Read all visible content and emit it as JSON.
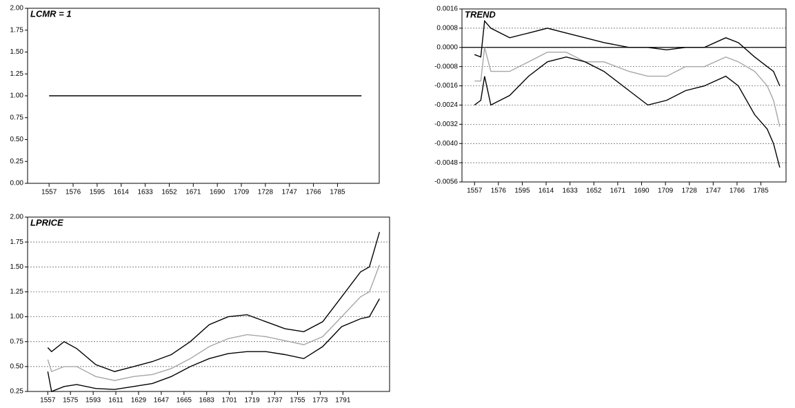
{
  "chart_data": [
    {
      "type": "line",
      "title": "LCMR = 1",
      "x": [
        1557,
        1804
      ],
      "series": [
        {
          "color": "#000000",
          "values": [
            1,
            1
          ]
        }
      ],
      "xlim": [
        1540,
        1818
      ],
      "xticks": [
        1557,
        1576,
        1595,
        1614,
        1633,
        1652,
        1671,
        1690,
        1709,
        1728,
        1747,
        1766,
        1785
      ],
      "ylim": [
        0,
        2
      ],
      "yticks": [
        {
          "value": 0,
          "label": "0.00"
        },
        {
          "value": 0.25,
          "label": "0.25"
        },
        {
          "value": 0.5,
          "label": "0.50"
        },
        {
          "value": 0.75,
          "label": "0.75"
        },
        {
          "value": 1,
          "label": "1.00"
        },
        {
          "value": 1.25,
          "label": "1.25"
        },
        {
          "value": 1.5,
          "label": "1.50"
        },
        {
          "value": 1.75,
          "label": "1.75"
        },
        {
          "value": 2,
          "label": "2.00"
        }
      ],
      "grid": false,
      "zero_line": false
    },
    {
      "type": "line",
      "title": "TREND",
      "x": [
        1557,
        1562,
        1565,
        1570,
        1585,
        1600,
        1615,
        1630,
        1645,
        1660,
        1680,
        1695,
        1710,
        1725,
        1740,
        1757,
        1767,
        1780,
        1790,
        1795,
        1800
      ],
      "series": [
        {
          "color": "#000000",
          "values": [
            -0.0003,
            -0.0004,
            0.0011,
            0.0008,
            0.0004,
            0.0006,
            0.0008,
            0.0006,
            0.0004,
            0.0002,
            0.0,
            0.0,
            -0.0001,
            0.0,
            0.0,
            0.0004,
            0.0002,
            -0.0004,
            -0.0008,
            -0.001,
            -0.0016
          ]
        },
        {
          "color": "#a6a6a6",
          "values": [
            -0.0014,
            -0.0014,
            0.0,
            -0.001,
            -0.001,
            -0.0006,
            -0.0002,
            -0.0002,
            -0.0006,
            -0.0006,
            -0.001,
            -0.0012,
            -0.0012,
            -0.0008,
            -0.0008,
            -0.0004,
            -0.0006,
            -0.001,
            -0.0016,
            -0.0022,
            -0.0033
          ]
        },
        {
          "color": "#000000",
          "values": [
            -0.0024,
            -0.0022,
            -0.0012,
            -0.0024,
            -0.002,
            -0.0012,
            -0.0006,
            -0.0004,
            -0.0006,
            -0.001,
            -0.0018,
            -0.0024,
            -0.0022,
            -0.0018,
            -0.0016,
            -0.0012,
            -0.0016,
            -0.0028,
            -0.0034,
            -0.004,
            -0.005
          ]
        }
      ],
      "xlim": [
        1547,
        1805
      ],
      "xticks": [
        1557,
        1576,
        1595,
        1614,
        1633,
        1652,
        1671,
        1690,
        1709,
        1728,
        1747,
        1766,
        1785
      ],
      "ylim": [
        -0.0056,
        0.0016
      ],
      "yticks": [
        {
          "value": -0.0056,
          "label": "-0.0056"
        },
        {
          "value": -0.0048,
          "label": "-0.0048"
        },
        {
          "value": -0.004,
          "label": "-0.0040"
        },
        {
          "value": -0.0032,
          "label": "-0.0032"
        },
        {
          "value": -0.0024,
          "label": "-0.0024"
        },
        {
          "value": -0.0016,
          "label": "-0.0016"
        },
        {
          "value": -0.0008,
          "label": "-0.0008"
        },
        {
          "value": 0,
          "label": "0.0000"
        },
        {
          "value": 0.0008,
          "label": "0.0008"
        },
        {
          "value": 0.0016,
          "label": "0.0016"
        }
      ],
      "grid": true,
      "zero_line": true
    },
    {
      "type": "line",
      "title": "LPRICE",
      "x": [
        1557,
        1560,
        1570,
        1580,
        1595,
        1610,
        1625,
        1640,
        1655,
        1670,
        1685,
        1700,
        1715,
        1730,
        1745,
        1760,
        1775,
        1790,
        1805,
        1812,
        1820
      ],
      "series": [
        {
          "color": "#000000",
          "values": [
            0.69,
            0.65,
            0.75,
            0.68,
            0.52,
            0.45,
            0.5,
            0.55,
            0.62,
            0.75,
            0.92,
            1.0,
            1.02,
            0.95,
            0.88,
            0.85,
            0.95,
            1.2,
            1.45,
            1.5,
            1.85
          ]
        },
        {
          "color": "#a6a6a6",
          "values": [
            0.57,
            0.45,
            0.5,
            0.5,
            0.4,
            0.36,
            0.4,
            0.42,
            0.48,
            0.58,
            0.7,
            0.78,
            0.82,
            0.8,
            0.76,
            0.72,
            0.8,
            1.0,
            1.2,
            1.25,
            1.52
          ]
        },
        {
          "color": "#000000",
          "values": [
            0.45,
            0.25,
            0.3,
            0.32,
            0.28,
            0.27,
            0.3,
            0.33,
            0.4,
            0.5,
            0.58,
            0.63,
            0.65,
            0.65,
            0.62,
            0.58,
            0.7,
            0.9,
            0.98,
            1.0,
            1.18
          ]
        }
      ],
      "xlim": [
        1541,
        1828
      ],
      "xticks": [
        1557,
        1575,
        1593,
        1611,
        1629,
        1647,
        1665,
        1683,
        1701,
        1719,
        1737,
        1755,
        1773,
        1791
      ],
      "ylim": [
        0.25,
        2
      ],
      "yticks": [
        {
          "value": 0.25,
          "label": "0.25"
        },
        {
          "value": 0.5,
          "label": "0.50"
        },
        {
          "value": 0.75,
          "label": "0.75"
        },
        {
          "value": 1,
          "label": "1.00"
        },
        {
          "value": 1.25,
          "label": "1.25"
        },
        {
          "value": 1.5,
          "label": "1.50"
        },
        {
          "value": 1.75,
          "label": "1.75"
        },
        {
          "value": 2,
          "label": "2.00"
        }
      ],
      "grid": true,
      "zero_line": false
    }
  ]
}
